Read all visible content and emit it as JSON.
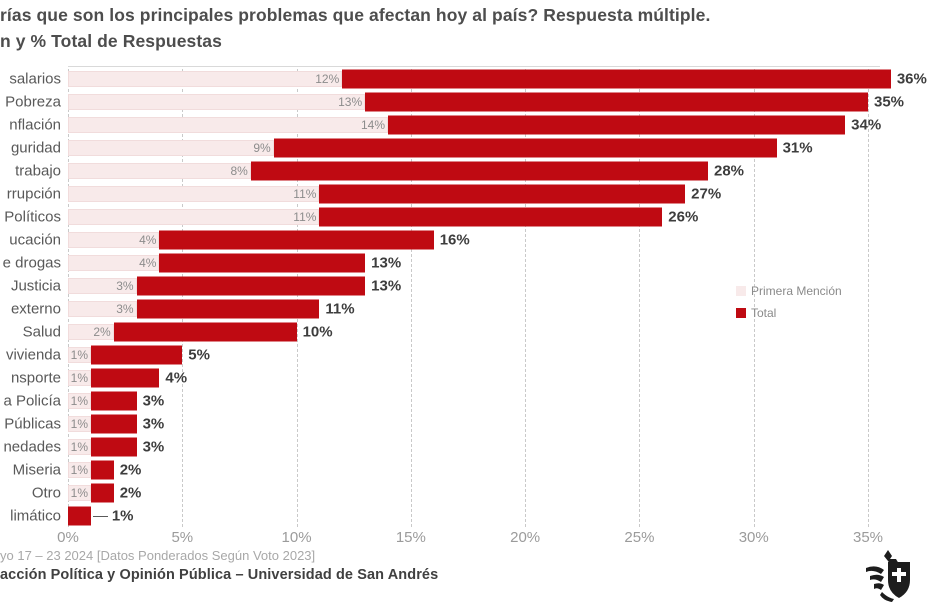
{
  "chart_data": {
    "type": "bar",
    "orientation": "horizontal",
    "stacked": true,
    "unit": "%",
    "title_lines": [
      "rías que son los principales problemas que afectan hoy al país? Respuesta múltiple.",
      "n y % Total de Respuestas"
    ],
    "categories": [
      "salarios",
      "Pobreza",
      "nflación",
      "guridad",
      "trabajo",
      "rrupción",
      "Políticos",
      "ucación",
      "e drogas",
      "Justicia",
      "externo",
      "Salud",
      "vivienda",
      "nsporte",
      "a Policía",
      "Públicas",
      "nedades",
      "Miseria",
      "Otro",
      "limático"
    ],
    "series": [
      {
        "name": "Primera Mención",
        "color": "#f8eaea",
        "values": [
          12,
          13,
          14,
          9,
          8,
          11,
          11,
          4,
          4,
          3,
          3,
          2,
          1,
          1,
          1,
          1,
          1,
          1,
          1,
          0
        ]
      },
      {
        "name": "Total",
        "color": "#bf0a12",
        "values": [
          36,
          35,
          34,
          31,
          28,
          27,
          26,
          16,
          13,
          13,
          11,
          10,
          5,
          4,
          3,
          3,
          3,
          2,
          2,
          1
        ]
      }
    ],
    "x_axis": {
      "ticks": [
        "0%",
        "5%",
        "10%",
        "15%",
        "20%",
        "25%",
        "30%",
        "35%"
      ],
      "min": 0,
      "max": 35,
      "grid": "vertical-dashed"
    },
    "legend": {
      "position": "middle-right",
      "items": [
        "Primera Mención",
        "Total"
      ]
    }
  },
  "footer": {
    "line1": "yo 17 – 23 2024 [Datos Ponderados Según Voto 2023]",
    "line2": "acción Política y Opinión Pública – Universidad de San Andrés"
  },
  "logo": {
    "name": "universidad-de-san-andres-crest"
  },
  "colors": {
    "total_bar": "#bf0a12",
    "primera_bar": "#f8eaea",
    "gridline": "#c9c9c9",
    "title_text": "#4d4d4d",
    "axis_text": "#9b9b9b",
    "category_text": "#595959",
    "total_label_text": "#3d3d3d",
    "primera_label_text": "#8c8c8c",
    "footer_muted": "#a8a8a8",
    "footer_bold": "#404040"
  }
}
